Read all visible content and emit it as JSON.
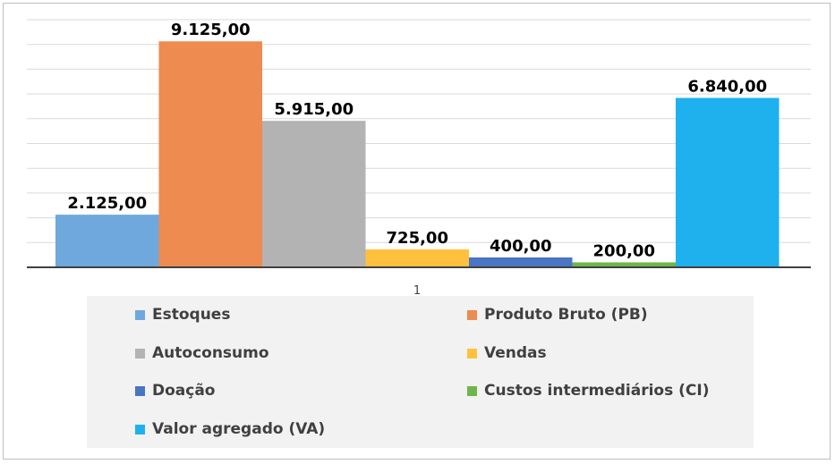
{
  "chart_data": {
    "type": "bar",
    "categories": [
      "1"
    ],
    "series": [
      {
        "name": "Estoques",
        "values": [
          2125
        ],
        "label": "2.125,00",
        "color": "#6fa8dc"
      },
      {
        "name": "Produto Bruto (PB)",
        "values": [
          9125
        ],
        "label": "9.125,00",
        "color": "#ed8b50"
      },
      {
        "name": "Autoconsumo",
        "values": [
          5915
        ],
        "label": "5.915,00",
        "color": "#b3b3b3"
      },
      {
        "name": "Vendas",
        "values": [
          725
        ],
        "label": "725,00",
        "color": "#ffc13d"
      },
      {
        "name": "Doação",
        "values": [
          400
        ],
        "label": "400,00",
        "color": "#4a74c4"
      },
      {
        "name": "Custos intermediários (CI)",
        "values": [
          200
        ],
        "label": "200,00",
        "color": "#6fb64a"
      },
      {
        "name": "Valor agregado (VA)",
        "values": [
          6840
        ],
        "label": "6.840,00",
        "color": "#1eb1ee"
      }
    ],
    "title": "",
    "xlabel": "",
    "ylabel": "",
    "ylim": [
      0,
      10000
    ],
    "grid": true,
    "legend_position": "bottom"
  }
}
